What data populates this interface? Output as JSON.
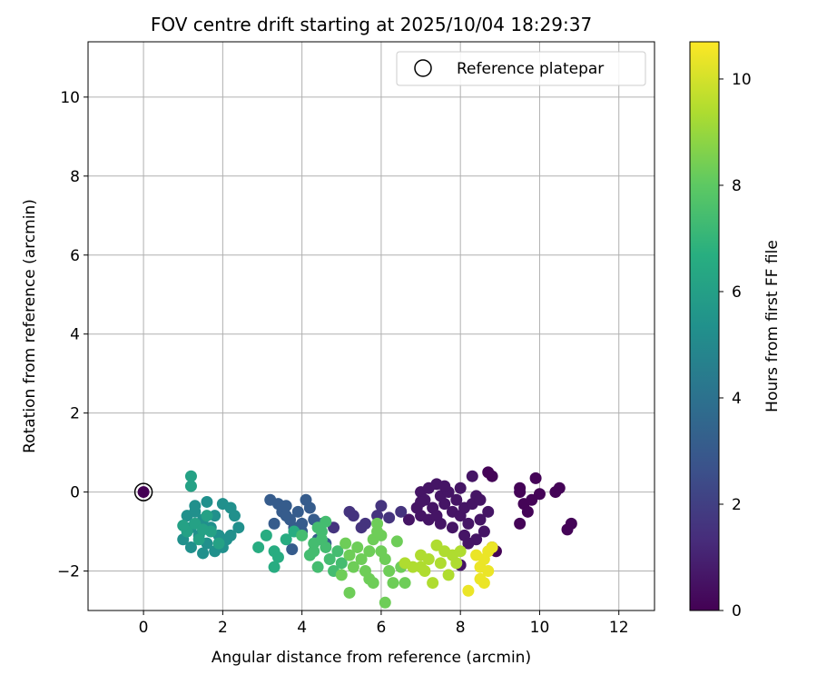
{
  "chart_data": {
    "type": "scatter",
    "title": "FOV centre drift starting at 2025/10/04 18:29:37",
    "xlabel": "Angular distance from reference (arcmin)",
    "ylabel": "Rotation from reference (arcmin)",
    "xlim": [
      -1.4,
      12.9
    ],
    "ylim": [
      -3.0,
      11.4
    ],
    "xticks": [
      0,
      2,
      4,
      6,
      8,
      10,
      12
    ],
    "yticks": [
      -2,
      0,
      2,
      4,
      6,
      8,
      10
    ],
    "grid": true,
    "legend": {
      "position": "top-right",
      "entries": [
        "Reference platepar"
      ]
    },
    "colorbar": {
      "label": "Hours from first FF file",
      "range": [
        0,
        10.7
      ],
      "ticks": [
        0,
        2,
        4,
        6,
        8,
        10
      ],
      "colormap": "viridis"
    },
    "reference_point": {
      "x": 0,
      "y": 0,
      "c": 0
    },
    "points": [
      {
        "x": 8.8,
        "y": 0.4,
        "c": 0.1
      },
      {
        "x": 8.7,
        "y": 0.5,
        "c": 0.1
      },
      {
        "x": 9.5,
        "y": 0.0,
        "c": 0.1
      },
      {
        "x": 9.5,
        "y": 0.1,
        "c": 0.1
      },
      {
        "x": 9.9,
        "y": 0.35,
        "c": 0.1
      },
      {
        "x": 10.0,
        "y": -0.05,
        "c": 0.1
      },
      {
        "x": 10.4,
        "y": 0.0,
        "c": 0.1
      },
      {
        "x": 10.5,
        "y": 0.1,
        "c": 0.1
      },
      {
        "x": 9.6,
        "y": -0.3,
        "c": 0.1
      },
      {
        "x": 9.7,
        "y": -0.5,
        "c": 0.1
      },
      {
        "x": 9.5,
        "y": -0.8,
        "c": 0.1
      },
      {
        "x": 10.8,
        "y": -0.8,
        "c": 0.1
      },
      {
        "x": 10.7,
        "y": -0.95,
        "c": 0.1
      },
      {
        "x": 8.9,
        "y": -1.5,
        "c": 0.1
      },
      {
        "x": 9.8,
        "y": -0.2,
        "c": 0.1
      },
      {
        "x": 7.0,
        "y": 0.0,
        "c": 0.6
      },
      {
        "x": 7.1,
        "y": -0.2,
        "c": 0.6
      },
      {
        "x": 7.2,
        "y": 0.1,
        "c": 0.6
      },
      {
        "x": 7.3,
        "y": -0.4,
        "c": 0.6
      },
      {
        "x": 7.4,
        "y": 0.2,
        "c": 0.6
      },
      {
        "x": 7.5,
        "y": -0.1,
        "c": 0.6
      },
      {
        "x": 7.6,
        "y": -0.3,
        "c": 0.6
      },
      {
        "x": 7.7,
        "y": 0.0,
        "c": 0.6
      },
      {
        "x": 7.8,
        "y": -0.5,
        "c": 0.6
      },
      {
        "x": 7.9,
        "y": -0.2,
        "c": 0.6
      },
      {
        "x": 8.0,
        "y": -0.6,
        "c": 0.6
      },
      {
        "x": 8.1,
        "y": -0.4,
        "c": 0.6
      },
      {
        "x": 8.2,
        "y": -0.8,
        "c": 0.6
      },
      {
        "x": 8.3,
        "y": -0.3,
        "c": 0.6
      },
      {
        "x": 8.4,
        "y": -0.1,
        "c": 0.6
      },
      {
        "x": 8.5,
        "y": -0.7,
        "c": 0.6
      },
      {
        "x": 8.6,
        "y": -1.0,
        "c": 0.6
      },
      {
        "x": 8.7,
        "y": -0.5,
        "c": 0.6
      },
      {
        "x": 7.0,
        "y": -0.6,
        "c": 0.6
      },
      {
        "x": 6.9,
        "y": -0.4,
        "c": 0.6
      },
      {
        "x": 7.2,
        "y": -0.7,
        "c": 0.6
      },
      {
        "x": 7.5,
        "y": -0.8,
        "c": 0.6
      },
      {
        "x": 7.8,
        "y": -0.9,
        "c": 0.6
      },
      {
        "x": 8.1,
        "y": -1.1,
        "c": 0.6
      },
      {
        "x": 8.4,
        "y": -1.2,
        "c": 0.6
      },
      {
        "x": 8.8,
        "y": -1.4,
        "c": 0.6
      },
      {
        "x": 6.7,
        "y": -0.7,
        "c": 0.6
      },
      {
        "x": 8.0,
        "y": 0.1,
        "c": 0.6
      },
      {
        "x": 8.3,
        "y": 0.4,
        "c": 0.6
      },
      {
        "x": 7.6,
        "y": 0.15,
        "c": 0.6
      },
      {
        "x": 8.5,
        "y": -0.2,
        "c": 0.6
      },
      {
        "x": 8.2,
        "y": -1.3,
        "c": 0.6
      },
      {
        "x": 7.4,
        "y": -0.6,
        "c": 0.6
      },
      {
        "x": 8.0,
        "y": -1.85,
        "c": 0.6
      },
      {
        "x": 7.0,
        "y": -0.25,
        "c": 0.6
      },
      {
        "x": 5.3,
        "y": -0.6,
        "c": 1.6
      },
      {
        "x": 5.6,
        "y": -0.8,
        "c": 1.6
      },
      {
        "x": 5.9,
        "y": -0.6,
        "c": 1.6
      },
      {
        "x": 6.0,
        "y": -0.35,
        "c": 1.6
      },
      {
        "x": 6.2,
        "y": -0.65,
        "c": 1.6
      },
      {
        "x": 5.5,
        "y": -0.9,
        "c": 1.6
      },
      {
        "x": 5.2,
        "y": -0.5,
        "c": 1.6
      },
      {
        "x": 4.8,
        "y": -0.9,
        "c": 1.6
      },
      {
        "x": 6.5,
        "y": -0.5,
        "c": 1.6
      },
      {
        "x": 3.2,
        "y": -0.2,
        "c": 3.1
      },
      {
        "x": 3.4,
        "y": -0.3,
        "c": 3.1
      },
      {
        "x": 3.5,
        "y": -0.5,
        "c": 3.1
      },
      {
        "x": 3.6,
        "y": -0.35,
        "c": 3.1
      },
      {
        "x": 3.7,
        "y": -0.7,
        "c": 3.1
      },
      {
        "x": 3.8,
        "y": -0.9,
        "c": 3.1
      },
      {
        "x": 3.9,
        "y": -0.5,
        "c": 3.1
      },
      {
        "x": 4.0,
        "y": -1.0,
        "c": 3.1
      },
      {
        "x": 4.1,
        "y": -0.2,
        "c": 3.1
      },
      {
        "x": 4.2,
        "y": -0.4,
        "c": 3.1
      },
      {
        "x": 4.3,
        "y": -0.7,
        "c": 3.1
      },
      {
        "x": 4.4,
        "y": -1.2,
        "c": 3.1
      },
      {
        "x": 3.3,
        "y": -0.8,
        "c": 3.1
      },
      {
        "x": 3.75,
        "y": -1.45,
        "c": 3.1
      },
      {
        "x": 4.5,
        "y": -0.8,
        "c": 3.1
      },
      {
        "x": 3.6,
        "y": -0.6,
        "c": 3.1
      },
      {
        "x": 4.6,
        "y": -1.3,
        "c": 3.1
      },
      {
        "x": 4.0,
        "y": -0.8,
        "c": 3.1
      },
      {
        "x": 1.1,
        "y": -0.6,
        "c": 5.3
      },
      {
        "x": 1.2,
        "y": -0.9,
        "c": 5.3
      },
      {
        "x": 1.3,
        "y": -0.5,
        "c": 5.3
      },
      {
        "x": 1.4,
        "y": -1.1,
        "c": 5.3
      },
      {
        "x": 1.5,
        "y": -0.7,
        "c": 5.3
      },
      {
        "x": 1.6,
        "y": -1.3,
        "c": 5.3
      },
      {
        "x": 1.7,
        "y": -0.9,
        "c": 5.3
      },
      {
        "x": 1.8,
        "y": -0.6,
        "c": 5.3
      },
      {
        "x": 1.9,
        "y": -1.1,
        "c": 5.3
      },
      {
        "x": 2.0,
        "y": -0.3,
        "c": 5.3
      },
      {
        "x": 2.1,
        "y": -1.2,
        "c": 5.3
      },
      {
        "x": 2.2,
        "y": -0.4,
        "c": 5.3
      },
      {
        "x": 2.3,
        "y": -0.6,
        "c": 5.3
      },
      {
        "x": 2.4,
        "y": -0.9,
        "c": 5.3
      },
      {
        "x": 1.0,
        "y": -1.2,
        "c": 5.3
      },
      {
        "x": 1.2,
        "y": -1.4,
        "c": 5.3
      },
      {
        "x": 1.5,
        "y": -1.55,
        "c": 5.3
      },
      {
        "x": 1.8,
        "y": -1.5,
        "c": 5.3
      },
      {
        "x": 2.0,
        "y": -1.4,
        "c": 5.3
      },
      {
        "x": 2.2,
        "y": -1.1,
        "c": 5.3
      },
      {
        "x": 1.3,
        "y": -0.35,
        "c": 5.3
      },
      {
        "x": 1.6,
        "y": -0.25,
        "c": 5.3
      },
      {
        "x": 1.2,
        "y": 0.4,
        "c": 6.1
      },
      {
        "x": 1.2,
        "y": 0.15,
        "c": 6.1
      },
      {
        "x": 1.1,
        "y": -1.0,
        "c": 6.1
      },
      {
        "x": 1.4,
        "y": -1.2,
        "c": 6.1
      },
      {
        "x": 1.7,
        "y": -1.0,
        "c": 6.1
      },
      {
        "x": 1.9,
        "y": -1.3,
        "c": 6.1
      },
      {
        "x": 1.3,
        "y": -0.8,
        "c": 6.1
      },
      {
        "x": 1.6,
        "y": -0.6,
        "c": 6.1
      },
      {
        "x": 1.0,
        "y": -0.85,
        "c": 6.1
      },
      {
        "x": 1.5,
        "y": -0.95,
        "c": 6.1
      },
      {
        "x": 2.9,
        "y": -1.4,
        "c": 6.6
      },
      {
        "x": 3.1,
        "y": -1.1,
        "c": 6.6
      },
      {
        "x": 3.3,
        "y": -1.5,
        "c": 6.6
      },
      {
        "x": 3.4,
        "y": -1.65,
        "c": 6.6
      },
      {
        "x": 3.3,
        "y": -1.9,
        "c": 6.6
      },
      {
        "x": 3.6,
        "y": -1.2,
        "c": 6.6
      },
      {
        "x": 3.8,
        "y": -1.0,
        "c": 6.6
      },
      {
        "x": 4.0,
        "y": -1.1,
        "c": 7.4
      },
      {
        "x": 4.2,
        "y": -1.6,
        "c": 7.4
      },
      {
        "x": 4.3,
        "y": -1.3,
        "c": 7.4
      },
      {
        "x": 4.4,
        "y": -1.9,
        "c": 7.4
      },
      {
        "x": 4.5,
        "y": -1.0,
        "c": 7.4
      },
      {
        "x": 4.6,
        "y": -1.4,
        "c": 7.4
      },
      {
        "x": 4.7,
        "y": -1.7,
        "c": 7.4
      },
      {
        "x": 4.8,
        "y": -2.0,
        "c": 7.4
      },
      {
        "x": 4.9,
        "y": -1.5,
        "c": 7.4
      },
      {
        "x": 5.0,
        "y": -1.8,
        "c": 7.4
      },
      {
        "x": 4.4,
        "y": -0.9,
        "c": 7.4
      },
      {
        "x": 4.6,
        "y": -0.75,
        "c": 7.4
      },
      {
        "x": 4.5,
        "y": -1.2,
        "c": 7.4
      },
      {
        "x": 4.3,
        "y": -1.5,
        "c": 7.4
      },
      {
        "x": 5.1,
        "y": -1.3,
        "c": 8.3
      },
      {
        "x": 5.2,
        "y": -1.6,
        "c": 8.3
      },
      {
        "x": 5.3,
        "y": -1.9,
        "c": 8.3
      },
      {
        "x": 5.4,
        "y": -1.4,
        "c": 8.3
      },
      {
        "x": 5.5,
        "y": -1.7,
        "c": 8.3
      },
      {
        "x": 5.6,
        "y": -2.0,
        "c": 8.3
      },
      {
        "x": 5.7,
        "y": -1.5,
        "c": 8.3
      },
      {
        "x": 5.8,
        "y": -1.2,
        "c": 8.3
      },
      {
        "x": 5.9,
        "y": -0.8,
        "c": 8.3
      },
      {
        "x": 6.0,
        "y": -1.1,
        "c": 8.3
      },
      {
        "x": 6.1,
        "y": -1.7,
        "c": 8.3
      },
      {
        "x": 6.2,
        "y": -2.0,
        "c": 8.3
      },
      {
        "x": 6.3,
        "y": -2.3,
        "c": 8.3
      },
      {
        "x": 6.4,
        "y": -1.25,
        "c": 8.3
      },
      {
        "x": 6.5,
        "y": -1.9,
        "c": 8.3
      },
      {
        "x": 5.2,
        "y": -2.55,
        "c": 8.3
      },
      {
        "x": 6.1,
        "y": -2.8,
        "c": 8.3
      },
      {
        "x": 5.0,
        "y": -2.1,
        "c": 8.3
      },
      {
        "x": 5.7,
        "y": -2.2,
        "c": 8.3
      },
      {
        "x": 5.9,
        "y": -1.0,
        "c": 8.3
      },
      {
        "x": 6.0,
        "y": -1.5,
        "c": 8.3
      },
      {
        "x": 5.8,
        "y": -2.3,
        "c": 8.3
      },
      {
        "x": 6.6,
        "y": -2.3,
        "c": 8.3
      },
      {
        "x": 6.8,
        "y": -1.9,
        "c": 9.4
      },
      {
        "x": 7.0,
        "y": -1.6,
        "c": 9.4
      },
      {
        "x": 7.1,
        "y": -2.0,
        "c": 9.4
      },
      {
        "x": 7.2,
        "y": -1.7,
        "c": 9.4
      },
      {
        "x": 7.3,
        "y": -2.3,
        "c": 9.4
      },
      {
        "x": 7.4,
        "y": -1.35,
        "c": 9.4
      },
      {
        "x": 7.5,
        "y": -1.8,
        "c": 9.4
      },
      {
        "x": 7.6,
        "y": -1.5,
        "c": 9.4
      },
      {
        "x": 7.7,
        "y": -2.1,
        "c": 9.4
      },
      {
        "x": 7.8,
        "y": -1.6,
        "c": 9.4
      },
      {
        "x": 7.9,
        "y": -1.8,
        "c": 9.4
      },
      {
        "x": 8.0,
        "y": -1.5,
        "c": 9.4
      },
      {
        "x": 6.6,
        "y": -1.8,
        "c": 9.4
      },
      {
        "x": 7.0,
        "y": -1.9,
        "c": 9.4
      },
      {
        "x": 8.2,
        "y": -2.5,
        "c": 10.4
      },
      {
        "x": 8.4,
        "y": -1.6,
        "c": 10.4
      },
      {
        "x": 8.5,
        "y": -1.9,
        "c": 10.4
      },
      {
        "x": 8.6,
        "y": -2.3,
        "c": 10.4
      },
      {
        "x": 8.7,
        "y": -1.5,
        "c": 10.4
      },
      {
        "x": 8.8,
        "y": -1.4,
        "c": 10.4
      },
      {
        "x": 8.6,
        "y": -1.7,
        "c": 10.4
      },
      {
        "x": 8.5,
        "y": -2.2,
        "c": 10.4
      },
      {
        "x": 8.7,
        "y": -2.0,
        "c": 10.4
      }
    ]
  }
}
